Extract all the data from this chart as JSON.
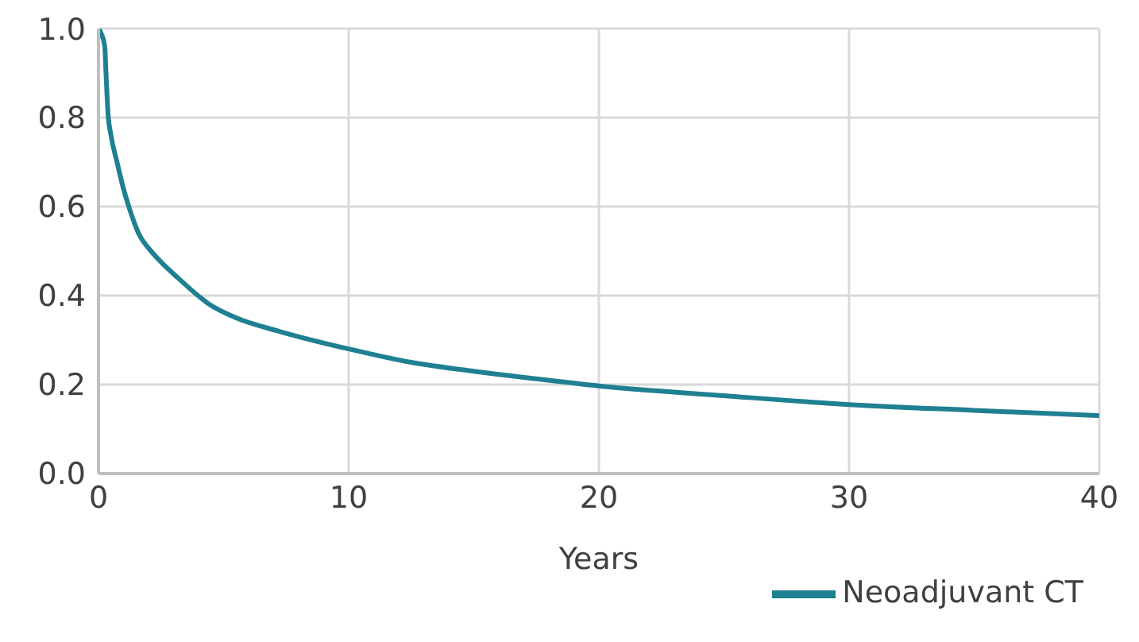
{
  "chart_data": {
    "type": "line",
    "xlabel": "Years",
    "x": [
      0,
      0.1,
      0.25,
      0.3,
      0.38,
      0.5,
      0.74,
      1,
      1.27,
      1.6,
      2.1,
      2.6,
      3.17,
      4.44,
      5.5,
      7.2,
      10,
      12.5,
      15,
      17.5,
      20,
      25,
      30,
      35,
      40
    ],
    "series": [
      {
        "name": "Neoadjuvant CT",
        "color": "#1f8093",
        "values": [
          1.0,
          0.99,
          0.96,
          0.9,
          0.81,
          0.76,
          0.7,
          0.64,
          0.59,
          0.54,
          0.5,
          0.47,
          0.44,
          0.38,
          0.35,
          0.32,
          0.28,
          0.25,
          0.23,
          0.213,
          0.197,
          0.175,
          0.155,
          0.142,
          0.13
        ]
      }
    ],
    "xlim": [
      0,
      40
    ],
    "xticks": [
      0,
      10,
      20,
      30,
      40
    ],
    "ylim": [
      0,
      1
    ],
    "yticks": [
      {
        "value": 0,
        "label": "0.0"
      },
      {
        "value": 0.2,
        "label": "0.2"
      },
      {
        "value": 0.4,
        "label": "0.4"
      },
      {
        "value": 0.6,
        "label": "0.6"
      },
      {
        "value": 0.8,
        "label": "0.8"
      },
      {
        "value": 1,
        "label": "1.0"
      }
    ],
    "grid": true,
    "legend": "bottom right",
    "marker": "none",
    "line_style": "solid"
  }
}
